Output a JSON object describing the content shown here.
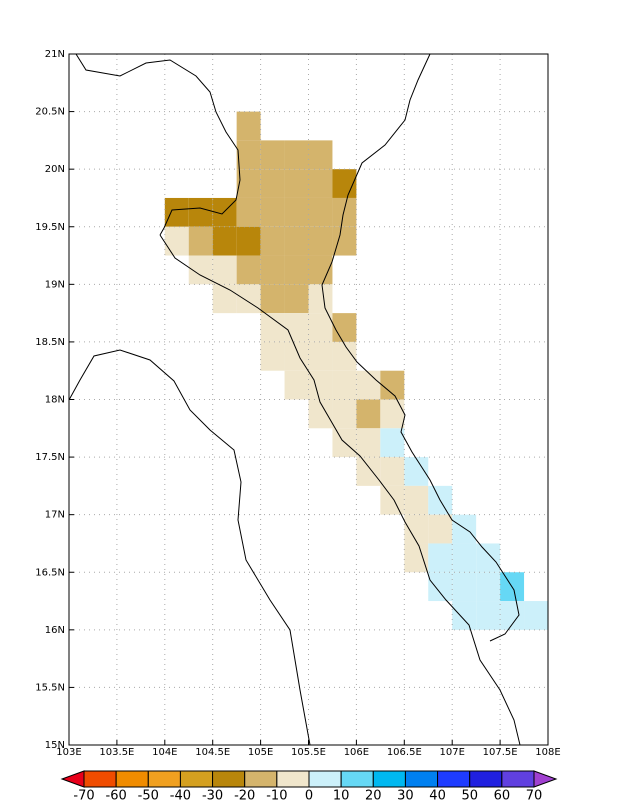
{
  "map": {
    "xlim": [
      103,
      108
    ],
    "ylim": [
      15,
      21
    ],
    "grid": true,
    "xticks": [
      {
        "value": 103,
        "label": "103E"
      },
      {
        "value": 103.5,
        "label": "103.5E"
      },
      {
        "value": 104,
        "label": "104E"
      },
      {
        "value": 104.5,
        "label": "104.5E"
      },
      {
        "value": 105,
        "label": "105E"
      },
      {
        "value": 105.5,
        "label": "105.5E"
      },
      {
        "value": 106,
        "label": "106E"
      },
      {
        "value": 106.5,
        "label": "106.5E"
      },
      {
        "value": 107,
        "label": "107E"
      },
      {
        "value": 107.5,
        "label": "107.5E"
      },
      {
        "value": 108,
        "label": "108E"
      }
    ],
    "yticks": [
      {
        "value": 15,
        "label": "15N"
      },
      {
        "value": 15.5,
        "label": "15.5N"
      },
      {
        "value": 16,
        "label": "16N"
      },
      {
        "value": 16.5,
        "label": "16.5N"
      },
      {
        "value": 17,
        "label": "17N"
      },
      {
        "value": 17.5,
        "label": "17.5N"
      },
      {
        "value": 18,
        "label": "18N"
      },
      {
        "value": 18.5,
        "label": "18.5N"
      },
      {
        "value": 19,
        "label": "19N"
      },
      {
        "value": 19.5,
        "label": "19.5N"
      },
      {
        "value": 20,
        "label": "20N"
      },
      {
        "value": 20.5,
        "label": "20.5N"
      },
      {
        "value": 21,
        "label": "21N"
      }
    ],
    "cell_size": 0.25,
    "cells": [
      {
        "lon": 104.75,
        "lat": 20.25,
        "value": -15
      },
      {
        "lon": 104.75,
        "lat": 20.0,
        "value": -15
      },
      {
        "lon": 105.0,
        "lat": 20.0,
        "value": -15
      },
      {
        "lon": 105.25,
        "lat": 20.0,
        "value": -15
      },
      {
        "lon": 105.5,
        "lat": 20.0,
        "value": -15
      },
      {
        "lon": 104.75,
        "lat": 19.75,
        "value": -15
      },
      {
        "lon": 105.0,
        "lat": 19.75,
        "value": -15
      },
      {
        "lon": 105.25,
        "lat": 19.75,
        "value": -15
      },
      {
        "lon": 105.5,
        "lat": 19.75,
        "value": -15
      },
      {
        "lon": 105.75,
        "lat": 19.75,
        "value": -25
      },
      {
        "lon": 104.0,
        "lat": 19.5,
        "value": -25
      },
      {
        "lon": 104.25,
        "lat": 19.5,
        "value": -25
      },
      {
        "lon": 104.5,
        "lat": 19.5,
        "value": -25
      },
      {
        "lon": 104.75,
        "lat": 19.5,
        "value": -15
      },
      {
        "lon": 105.0,
        "lat": 19.5,
        "value": -15
      },
      {
        "lon": 105.25,
        "lat": 19.5,
        "value": -15
      },
      {
        "lon": 105.5,
        "lat": 19.5,
        "value": -15
      },
      {
        "lon": 105.75,
        "lat": 19.5,
        "value": -15
      },
      {
        "lon": 104.0,
        "lat": 19.25,
        "value": -5
      },
      {
        "lon": 104.25,
        "lat": 19.25,
        "value": -15
      },
      {
        "lon": 104.5,
        "lat": 19.25,
        "value": -25
      },
      {
        "lon": 104.75,
        "lat": 19.25,
        "value": -25
      },
      {
        "lon": 105.0,
        "lat": 19.25,
        "value": -15
      },
      {
        "lon": 105.25,
        "lat": 19.25,
        "value": -15
      },
      {
        "lon": 105.5,
        "lat": 19.25,
        "value": -15
      },
      {
        "lon": 105.75,
        "lat": 19.25,
        "value": -15
      },
      {
        "lon": 104.25,
        "lat": 19.0,
        "value": -5
      },
      {
        "lon": 104.5,
        "lat": 19.0,
        "value": -5
      },
      {
        "lon": 104.75,
        "lat": 19.0,
        "value": -15
      },
      {
        "lon": 105.0,
        "lat": 19.0,
        "value": -15
      },
      {
        "lon": 105.25,
        "lat": 19.0,
        "value": -15
      },
      {
        "lon": 105.5,
        "lat": 19.0,
        "value": -15
      },
      {
        "lon": 104.5,
        "lat": 18.75,
        "value": -5
      },
      {
        "lon": 104.75,
        "lat": 18.75,
        "value": -5
      },
      {
        "lon": 105.0,
        "lat": 18.75,
        "value": -15
      },
      {
        "lon": 105.25,
        "lat": 18.75,
        "value": -15
      },
      {
        "lon": 105.5,
        "lat": 18.75,
        "value": -5
      },
      {
        "lon": 105.0,
        "lat": 18.5,
        "value": -5
      },
      {
        "lon": 105.25,
        "lat": 18.5,
        "value": -5
      },
      {
        "lon": 105.5,
        "lat": 18.5,
        "value": -5
      },
      {
        "lon": 105.75,
        "lat": 18.5,
        "value": -15
      },
      {
        "lon": 105.0,
        "lat": 18.25,
        "value": -5
      },
      {
        "lon": 105.25,
        "lat": 18.25,
        "value": -5
      },
      {
        "lon": 105.5,
        "lat": 18.25,
        "value": -5
      },
      {
        "lon": 105.75,
        "lat": 18.25,
        "value": -5
      },
      {
        "lon": 105.25,
        "lat": 18.0,
        "value": -5
      },
      {
        "lon": 105.5,
        "lat": 18.0,
        "value": -5
      },
      {
        "lon": 105.75,
        "lat": 18.0,
        "value": -5
      },
      {
        "lon": 106.0,
        "lat": 18.0,
        "value": -5
      },
      {
        "lon": 106.25,
        "lat": 18.0,
        "value": -15
      },
      {
        "lon": 105.5,
        "lat": 17.75,
        "value": -5
      },
      {
        "lon": 105.75,
        "lat": 17.75,
        "value": -5
      },
      {
        "lon": 106.0,
        "lat": 17.75,
        "value": -15
      },
      {
        "lon": 106.25,
        "lat": 17.75,
        "value": -5
      },
      {
        "lon": 105.75,
        "lat": 17.5,
        "value": -5
      },
      {
        "lon": 106.0,
        "lat": 17.5,
        "value": -5
      },
      {
        "lon": 106.25,
        "lat": 17.5,
        "value": 5
      },
      {
        "lon": 106.0,
        "lat": 17.25,
        "value": -5
      },
      {
        "lon": 106.25,
        "lat": 17.25,
        "value": -5
      },
      {
        "lon": 106.5,
        "lat": 17.25,
        "value": 5
      },
      {
        "lon": 106.25,
        "lat": 17.0,
        "value": -5
      },
      {
        "lon": 106.5,
        "lat": 17.0,
        "value": -5
      },
      {
        "lon": 106.75,
        "lat": 17.0,
        "value": 5
      },
      {
        "lon": 106.5,
        "lat": 16.75,
        "value": -5
      },
      {
        "lon": 106.75,
        "lat": 16.75,
        "value": -5
      },
      {
        "lon": 107.0,
        "lat": 16.75,
        "value": 5
      },
      {
        "lon": 106.5,
        "lat": 16.5,
        "value": -5
      },
      {
        "lon": 106.75,
        "lat": 16.5,
        "value": 5
      },
      {
        "lon": 107.0,
        "lat": 16.5,
        "value": 5
      },
      {
        "lon": 107.25,
        "lat": 16.5,
        "value": 5
      },
      {
        "lon": 106.75,
        "lat": 16.25,
        "value": 5
      },
      {
        "lon": 107.0,
        "lat": 16.25,
        "value": 5
      },
      {
        "lon": 107.25,
        "lat": 16.25,
        "value": 5
      },
      {
        "lon": 107.5,
        "lat": 16.25,
        "value": 15
      },
      {
        "lon": 107.0,
        "lat": 16.0,
        "value": 5
      },
      {
        "lon": 107.25,
        "lat": 16.0,
        "value": 5
      },
      {
        "lon": 107.5,
        "lat": 16.0,
        "value": 5
      },
      {
        "lon": 107.75,
        "lat": 16.0,
        "value": 5
      }
    ]
  },
  "colorbar": {
    "levels": [
      -70,
      -60,
      -50,
      -40,
      -30,
      -20,
      -10,
      0,
      10,
      20,
      30,
      40,
      50,
      60,
      70
    ],
    "colors": [
      "#e8001a",
      "#f04c00",
      "#f08c00",
      "#f0a020",
      "#d4a020",
      "#b8860b",
      "#d4b46c",
      "#f0e6cc",
      "#ccf0fa",
      "#66d8f5",
      "#00b8f0",
      "#0080f0",
      "#1e3cff",
      "#2020e0",
      "#6040e0",
      "#a040d0"
    ]
  }
}
